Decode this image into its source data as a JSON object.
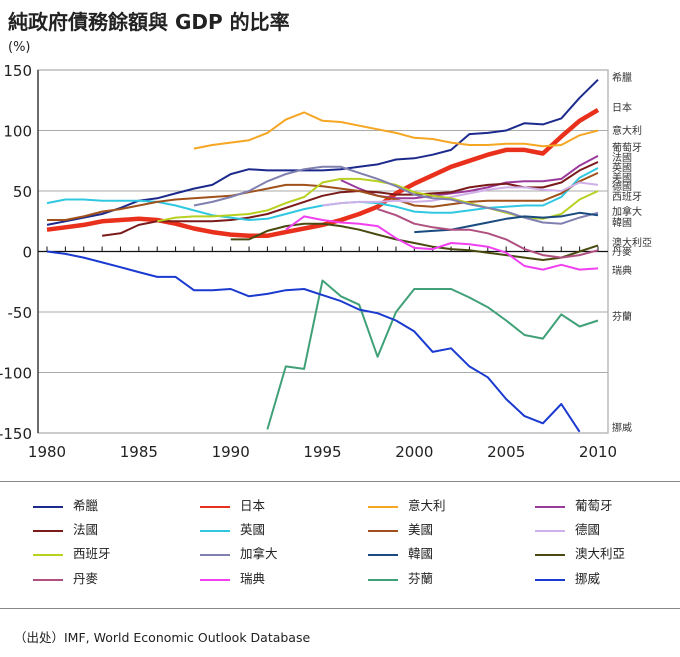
{
  "title": "純政府債務餘額與 GDP 的比率",
  "source": "（出处）IMF, World Economic Outlook Database",
  "chart_data": {
    "type": "line",
    "title": "純政府債務餘額與 GDP 的比率",
    "ylabel": "(%)",
    "xlim": [
      1980,
      2010
    ],
    "ylim": [
      -150,
      150
    ],
    "xticks": [
      1980,
      1985,
      1990,
      1995,
      2000,
      2005,
      2010
    ],
    "yticks": [
      -150,
      -100,
      -50,
      0,
      50,
      100,
      150
    ],
    "grid": "horizontal",
    "legend": "bottom",
    "series": [
      {
        "name": "希臘",
        "color": "#1c2a8c",
        "start": 1980,
        "values": [
          22,
          25,
          28,
          31,
          36,
          42,
          44,
          48,
          52,
          55,
          64,
          68,
          67,
          67,
          67,
          67,
          68,
          70,
          72,
          76,
          77,
          80,
          84,
          97,
          98,
          100,
          106,
          105,
          110,
          127,
          142
        ]
      },
      {
        "name": "日本",
        "color": "#e8301c",
        "start": 1980,
        "thick": true,
        "values": [
          18,
          20,
          22,
          25,
          26,
          27,
          26,
          23,
          19,
          16,
          14,
          13,
          13,
          16,
          19,
          22,
          26,
          31,
          37,
          48,
          56,
          63,
          70,
          75,
          80,
          84,
          84,
          81,
          95,
          108,
          117
        ]
      },
      {
        "name": "意大利",
        "color": "#f5a623",
        "start": 1988,
        "values": [
          85,
          88,
          90,
          92,
          98,
          109,
          115,
          108,
          107,
          104,
          101,
          98,
          94,
          93,
          90,
          88,
          88,
          89,
          89,
          87,
          88,
          96,
          100
        ]
      },
      {
        "name": "葡萄牙",
        "color": "#9a3a9a",
        "start": 1996,
        "values": [
          59,
          52,
          46,
          44,
          44,
          46,
          48,
          50,
          53,
          57,
          58,
          58,
          60,
          71,
          79
        ]
      },
      {
        "name": "法國",
        "color": "#7a1a1a",
        "start": 1983,
        "values": [
          13,
          15,
          22,
          25,
          25,
          25,
          25,
          26,
          28,
          31,
          36,
          41,
          46,
          49,
          50,
          49,
          47,
          47,
          48,
          49,
          53,
          55,
          56,
          53,
          53,
          57,
          67,
          74
        ]
      },
      {
        "name": "英國",
        "color": "#30c8e0",
        "start": 1980,
        "values": [
          40,
          43,
          43,
          42,
          42,
          42,
          41,
          38,
          34,
          30,
          28,
          26,
          27,
          31,
          35,
          38,
          40,
          41,
          40,
          37,
          33,
          32,
          32,
          34,
          36,
          37,
          38,
          38,
          45,
          61,
          69
        ]
      },
      {
        "name": "美國",
        "color": "#a0501a",
        "start": 1980,
        "values": [
          26,
          26,
          29,
          33,
          35,
          38,
          41,
          43,
          44,
          45,
          46,
          49,
          52,
          55,
          55,
          54,
          52,
          50,
          46,
          43,
          38,
          37,
          39,
          41,
          42,
          42,
          42,
          42,
          48,
          58,
          65
        ]
      },
      {
        "name": "德國",
        "color": "#d0b0e8",
        "start": 1995,
        "values": [
          38,
          40,
          41,
          41,
          42,
          41,
          42,
          45,
          48,
          51,
          53,
          53,
          51,
          50,
          57,
          55
        ]
      },
      {
        "name": "西班牙",
        "color": "#b8d020",
        "start": 1986,
        "values": [
          25,
          28,
          29,
          29,
          30,
          31,
          34,
          40,
          45,
          57,
          60,
          60,
          58,
          55,
          49,
          46,
          44,
          40,
          36,
          32,
          28,
          27,
          31,
          43,
          50
        ]
      },
      {
        "name": "加拿大",
        "color": "#8080b0",
        "start": 1988,
        "values": [
          38,
          41,
          45,
          50,
          58,
          64,
          68,
          70,
          70,
          65,
          60,
          54,
          47,
          44,
          43,
          39,
          36,
          33,
          28,
          24,
          23,
          28,
          32
        ]
      },
      {
        "name": "韓國",
        "color": "#1a4a80",
        "start": 2000,
        "values": [
          16,
          17,
          18,
          21,
          24,
          27,
          29,
          28,
          29,
          32,
          30
        ]
      },
      {
        "name": "澳大利亞",
        "color": "#4a4a10",
        "start": 1990,
        "values": [
          10,
          10,
          17,
          21,
          23,
          23,
          21,
          18,
          14,
          10,
          7,
          4,
          2,
          1,
          -1,
          -3,
          -5,
          -7,
          -5,
          0,
          5
        ]
      },
      {
        "name": "丹麥",
        "color": "#b05080",
        "start": 1998,
        "values": [
          35,
          30,
          23,
          20,
          18,
          18,
          15,
          10,
          2,
          -3,
          -5,
          -3,
          1
        ]
      },
      {
        "name": "瑞典",
        "color": "#f040f0",
        "start": 1993,
        "values": [
          18,
          29,
          26,
          24,
          23,
          21,
          11,
          3,
          2,
          7,
          6,
          4,
          -1,
          -12,
          -15,
          -11,
          -15,
          -14
        ]
      },
      {
        "name": "芬蘭",
        "color": "#40a078",
        "start": 1992,
        "values": [
          -147,
          -95,
          -97,
          -24,
          -37,
          -44,
          -87,
          -50,
          -31,
          -31,
          -31,
          -38,
          -46,
          -57,
          -69,
          -72,
          -52,
          -62,
          -57
        ]
      },
      {
        "name": "挪威",
        "color": "#1a3ad0",
        "start": 1980,
        "values": [
          0,
          -2,
          -5,
          -9,
          -13,
          -17,
          -21,
          -21,
          -32,
          -32,
          -31,
          -37,
          -35,
          -32,
          -31,
          -36,
          -41,
          -48,
          -51,
          -57,
          -66,
          -83,
          -80,
          -95,
          -104,
          -122,
          -136,
          -142,
          -126,
          -149
        ]
      }
    ]
  }
}
